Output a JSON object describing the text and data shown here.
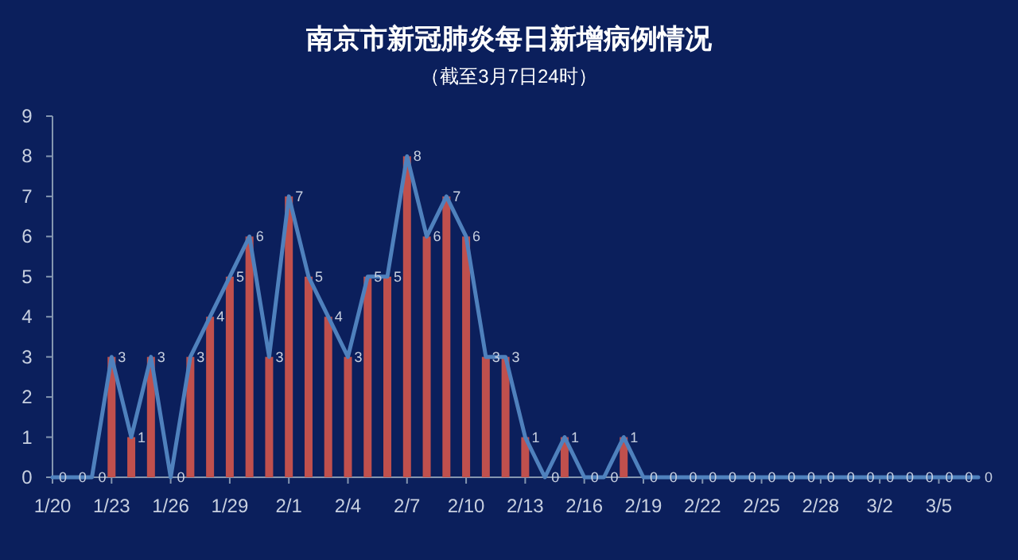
{
  "chart_data": {
    "type": "bar",
    "title": "南京市新冠肺炎每日新增病例情况",
    "subtitle": "（截至3月7日24时）",
    "categories": [
      "1/20",
      null,
      null,
      "1/23",
      null,
      null,
      "1/26",
      null,
      null,
      "1/29",
      null,
      null,
      "2/1",
      null,
      null,
      "2/4",
      null,
      null,
      "2/7",
      null,
      null,
      "2/10",
      null,
      null,
      "2/13",
      null,
      null,
      "2/16",
      null,
      null,
      "2/19",
      null,
      null,
      "2/22",
      null,
      null,
      "2/25",
      null,
      null,
      "2/28",
      null,
      null,
      "3/2",
      null,
      null,
      "3/5",
      null,
      null
    ],
    "series": [
      {
        "color": "#c0504d",
        "values": [
          0,
          0,
          0,
          3,
          1,
          3,
          0,
          3,
          4,
          5,
          6,
          3,
          7,
          5,
          4,
          3,
          5,
          5,
          8,
          6,
          7,
          6,
          3,
          3,
          1,
          0,
          1,
          0,
          0,
          1,
          0,
          0,
          0,
          0,
          0,
          0,
          0,
          0,
          0,
          0,
          0,
          0,
          0,
          0,
          0,
          0,
          0,
          0
        ],
        "value_labels": [
          "0",
          "0",
          "0",
          "3",
          "1",
          "3",
          "0",
          "3",
          "4",
          "5",
          "6",
          "3",
          "7",
          "5",
          "4",
          "3",
          "5",
          "5",
          "8",
          "6",
          "7",
          "6",
          "3",
          "3",
          "1",
          "0",
          "1",
          "0",
          "0",
          "1",
          "0",
          "0",
          "0",
          "0",
          "0",
          "0",
          "0",
          "0",
          "0",
          "0",
          "0",
          "0",
          "0",
          "0",
          "0",
          "0",
          "0",
          "0"
        ]
      },
      {
        "type": "line",
        "color": "#4f81bd",
        "values": [
          0,
          0,
          0,
          3,
          1,
          3,
          0,
          3,
          4,
          5,
          6,
          3,
          7,
          5,
          4,
          3,
          5,
          5,
          8,
          6,
          7,
          6,
          3,
          3,
          1,
          0,
          1,
          0,
          0,
          1,
          0,
          0,
          0,
          0,
          0,
          0,
          0,
          0,
          0,
          0,
          0,
          0,
          0,
          0,
          0,
          0,
          0,
          0
        ]
      }
    ],
    "ylim": [
      0,
      9
    ],
    "yticks": [
      0,
      1,
      2,
      3,
      4,
      5,
      6,
      7,
      8,
      9
    ],
    "grid": false
  }
}
